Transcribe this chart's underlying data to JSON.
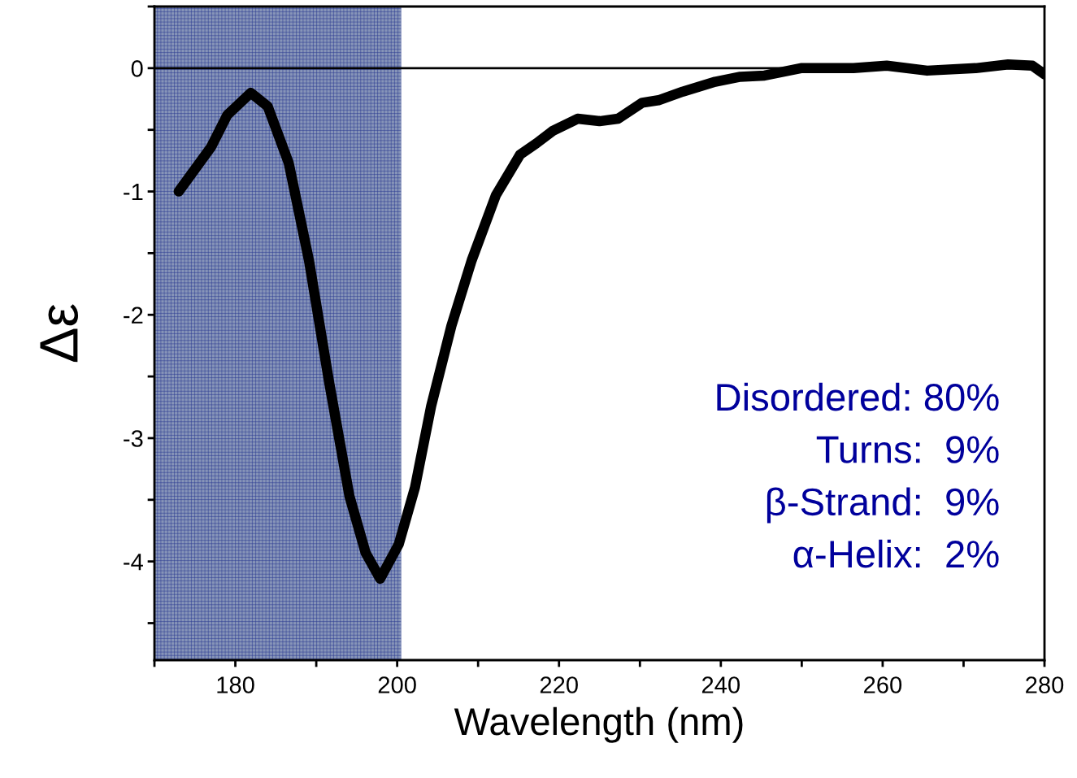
{
  "chart_data": {
    "type": "line",
    "xlabel": "Wavelength (nm)",
    "ylabel": "Δε",
    "x": [
      173,
      177,
      179,
      181.9,
      184,
      186.6,
      189.1,
      191.6,
      194.1,
      196.1,
      197.9,
      200.2,
      202.2,
      204.2,
      206.7,
      209.2,
      212.2,
      215.2,
      217.2,
      219.2,
      222.3,
      225,
      227.3,
      230.3,
      232.3,
      235.3,
      239.3,
      242.4,
      245.4,
      249.9,
      256.4,
      260.5,
      265.5,
      271.5,
      275.5,
      278.5,
      280
    ],
    "series": [
      {
        "color": "#000000",
        "values": [
          -1.0,
          -0.64,
          -0.38,
          -0.2,
          -0.31,
          -0.77,
          -1.56,
          -2.55,
          -3.47,
          -3.93,
          -4.14,
          -3.86,
          -3.4,
          -2.74,
          -2.09,
          -1.56,
          -1.03,
          -0.7,
          -0.61,
          -0.51,
          -0.41,
          -0.43,
          -0.41,
          -0.28,
          -0.26,
          -0.19,
          -0.11,
          -0.07,
          -0.06,
          0.0,
          0.0,
          0.02,
          -0.02,
          0.0,
          0.03,
          0.02,
          -0.05
        ]
      }
    ],
    "xlim": [
      170,
      280
    ],
    "ylim": [
      -4.8,
      0.5
    ],
    "xticks": [
      {
        "value": 170,
        "label": null
      },
      180,
      {
        "value": 190,
        "label": null
      },
      200,
      {
        "value": 210,
        "label": null
      },
      220,
      {
        "value": 230,
        "label": null
      },
      240,
      {
        "value": 250,
        "label": null
      },
      260,
      {
        "value": 270,
        "label": null
      },
      280
    ],
    "yticks": [
      {
        "value": 0.5,
        "label": null
      },
      0,
      {
        "value": -0.5,
        "label": null
      },
      -1,
      {
        "value": -1.5,
        "label": null
      },
      -2,
      {
        "value": -2.5,
        "label": null
      },
      -3,
      {
        "value": -3.5,
        "label": null
      },
      -4,
      {
        "value": -4.5,
        "label": null
      }
    ],
    "ref_lines": [
      {
        "axis": "y",
        "value": 0,
        "color": "#000000"
      }
    ],
    "bands": [
      {
        "axis": "x",
        "from": 170,
        "to": 200.5,
        "color": "#8694b8"
      }
    ],
    "annotations": [
      "Disordered: 80%",
      "Turns:  9%",
      "β-Strand:  9%",
      "α-Helix:  2%"
    ],
    "grid": false,
    "legend": false,
    "line_style": "solid"
  }
}
